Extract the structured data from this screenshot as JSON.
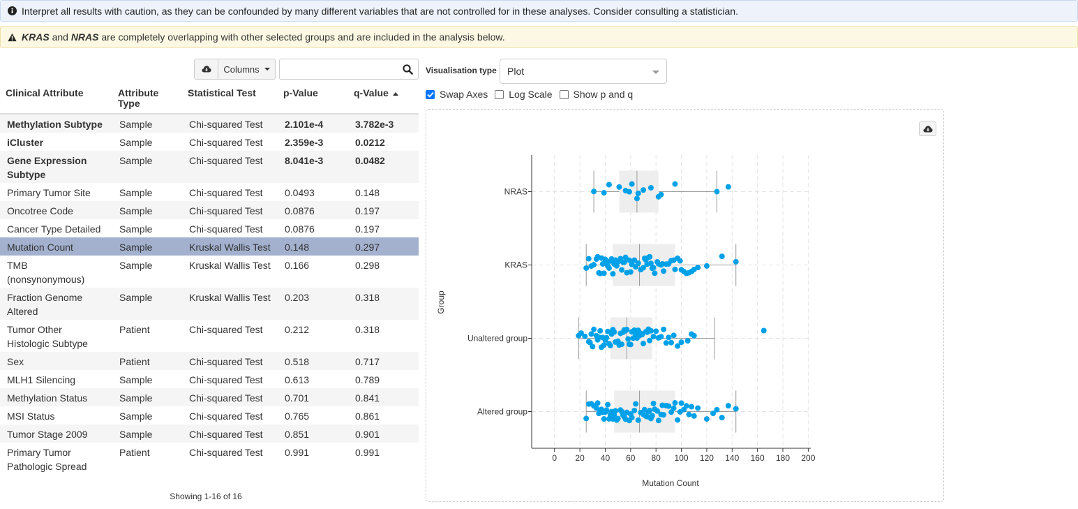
{
  "alerts": {
    "info": "Interpret all results with caution, as they can be confounded by many different variables that are not controlled for in these analyses. Consider consulting a statistician.",
    "warning_gene1": "KRAS",
    "warning_and": "and",
    "warning_gene2": "NRAS",
    "warning_rest": "are completely overlapping with other selected groups and are included in the analysis below."
  },
  "toolbar": {
    "columns_label": "Columns",
    "search_placeholder": ""
  },
  "table": {
    "headers": [
      "Clinical Attribute",
      "Attribute Type",
      "Statistical Test",
      "p-Value",
      "q-Value"
    ],
    "rows": [
      {
        "attr": "Methylation Subtype",
        "type": "Sample",
        "test": "Chi-squared Test",
        "p": "2.101e-4",
        "q": "3.782e-3",
        "significant": true
      },
      {
        "attr": "iCluster",
        "type": "Sample",
        "test": "Chi-squared Test",
        "p": "2.359e-3",
        "q": "0.0212",
        "significant": true
      },
      {
        "attr": "Gene Expression Subtype",
        "type": "Sample",
        "test": "Chi-squared Test",
        "p": "8.041e-3",
        "q": "0.0482",
        "significant": true
      },
      {
        "attr": "Primary Tumor Site",
        "type": "Sample",
        "test": "Chi-squared Test",
        "p": "0.0493",
        "q": "0.148"
      },
      {
        "attr": "Oncotree Code",
        "type": "Sample",
        "test": "Chi-squared Test",
        "p": "0.0876",
        "q": "0.197"
      },
      {
        "attr": "Cancer Type Detailed",
        "type": "Sample",
        "test": "Chi-squared Test",
        "p": "0.0876",
        "q": "0.197"
      },
      {
        "attr": "Mutation Count",
        "type": "Sample",
        "test": "Kruskal Wallis Test",
        "p": "0.148",
        "q": "0.297",
        "selected": true
      },
      {
        "attr": "TMB (nonsynonymous)",
        "type": "Sample",
        "test": "Kruskal Wallis Test",
        "p": "0.166",
        "q": "0.298"
      },
      {
        "attr": "Fraction Genome Altered",
        "type": "Sample",
        "test": "Kruskal Wallis Test",
        "p": "0.203",
        "q": "0.318"
      },
      {
        "attr": "Tumor Other Histologic Subtype",
        "type": "Patient",
        "test": "Chi-squared Test",
        "p": "0.212",
        "q": "0.318"
      },
      {
        "attr": "Sex",
        "type": "Patient",
        "test": "Chi-squared Test",
        "p": "0.518",
        "q": "0.717"
      },
      {
        "attr": "MLH1 Silencing",
        "type": "Sample",
        "test": "Chi-squared Test",
        "p": "0.613",
        "q": "0.789"
      },
      {
        "attr": "Methylation Status",
        "type": "Sample",
        "test": "Chi-squared Test",
        "p": "0.701",
        "q": "0.841"
      },
      {
        "attr": "MSI Status",
        "type": "Sample",
        "test": "Chi-squared Test",
        "p": "0.765",
        "q": "0.861"
      },
      {
        "attr": "Tumor Stage 2009",
        "type": "Sample",
        "test": "Chi-squared Test",
        "p": "0.851",
        "q": "0.901"
      },
      {
        "attr": "Primary Tumor Pathologic Spread",
        "type": "Patient",
        "test": "Chi-squared Test",
        "p": "0.991",
        "q": "0.991"
      }
    ],
    "footer": "Showing 1-16 of 16",
    "sort_column": "q-Value",
    "sort_direction": "ascending"
  },
  "visualisation": {
    "label": "Visualisation type",
    "selected": "Plot",
    "options": [
      {
        "label": "Swap Axes",
        "checked": true
      },
      {
        "label": "Log Scale",
        "checked": false
      },
      {
        "label": "Show p and q",
        "checked": false
      }
    ]
  },
  "colors": {
    "point": "#00a1e8",
    "box": "#eeeeee",
    "selected_row": "#a3b1cf",
    "significant": "bold"
  },
  "icons": [
    "info-circle-icon",
    "warning-triangle-icon",
    "cloud-download-icon",
    "search-icon",
    "caret-down-icon",
    "sort-up-icon"
  ],
  "chart_data": {
    "type": "box",
    "orientation": "horizontal",
    "xlabel": "Mutation Count",
    "ylabel": "Group",
    "xlim": [
      -18,
      202
    ],
    "xticks": [
      0,
      20,
      40,
      60,
      80,
      100,
      120,
      140,
      160,
      180,
      200
    ],
    "grid": true,
    "series": [
      {
        "name": "NRAS",
        "whisker_low": 31,
        "q1": 51,
        "median": 65,
        "q3": 82,
        "whisker_high": 128,
        "points": [
          31,
          39,
          43,
          51,
          56,
          59,
          61,
          65,
          66,
          70,
          76,
          82,
          84,
          95,
          128,
          137
        ]
      },
      {
        "name": "KRAS",
        "whisker_low": 25,
        "q1": 46,
        "median": 67,
        "q3": 95,
        "whisker_high": 143,
        "points": [
          25,
          27,
          29,
          31,
          33,
          34,
          35,
          36,
          37,
          38,
          39,
          40,
          41,
          42,
          43,
          44,
          45,
          46,
          47,
          48,
          49,
          50,
          52,
          53,
          54,
          55,
          56,
          57,
          59,
          60,
          61,
          63,
          64,
          66,
          68,
          70,
          71,
          72,
          73,
          74,
          75,
          76,
          77,
          78,
          79,
          81,
          82,
          84,
          85,
          86,
          88,
          90,
          92,
          94,
          95,
          97,
          99,
          100,
          102,
          104,
          106,
          108,
          110,
          113,
          120,
          132,
          143
        ]
      },
      {
        "name": "Unaltered group",
        "whisker_low": 19,
        "q1": 44,
        "median": 57,
        "q3": 77,
        "whisker_high": 126,
        "points": [
          19,
          21,
          24,
          27,
          28,
          29,
          30,
          31,
          33,
          34,
          35,
          36,
          37,
          38,
          39,
          40,
          41,
          42,
          43,
          44,
          45,
          46,
          47,
          48,
          49,
          50,
          51,
          52,
          53,
          54,
          55,
          56,
          57,
          58,
          59,
          60,
          61,
          62,
          63,
          64,
          65,
          66,
          67,
          68,
          69,
          70,
          72,
          73,
          74,
          75,
          76,
          78,
          80,
          82,
          84,
          86,
          88,
          90,
          92,
          94,
          97,
          100,
          105,
          108,
          110,
          165
        ]
      },
      {
        "name": "Altered group",
        "whisker_low": 25,
        "q1": 47,
        "median": 67,
        "q3": 95,
        "whisker_high": 143,
        "points": [
          25,
          27,
          29,
          31,
          33,
          34,
          35,
          36,
          37,
          38,
          39,
          40,
          41,
          42,
          43,
          44,
          45,
          46,
          47,
          48,
          49,
          50,
          52,
          53,
          54,
          55,
          56,
          57,
          59,
          60,
          61,
          63,
          64,
          66,
          68,
          70,
          71,
          72,
          73,
          74,
          75,
          76,
          77,
          78,
          79,
          81,
          82,
          84,
          85,
          86,
          88,
          90,
          92,
          94,
          95,
          97,
          99,
          100,
          102,
          104,
          106,
          108,
          110,
          113,
          120,
          125,
          128,
          132,
          137,
          143
        ]
      }
    ]
  }
}
